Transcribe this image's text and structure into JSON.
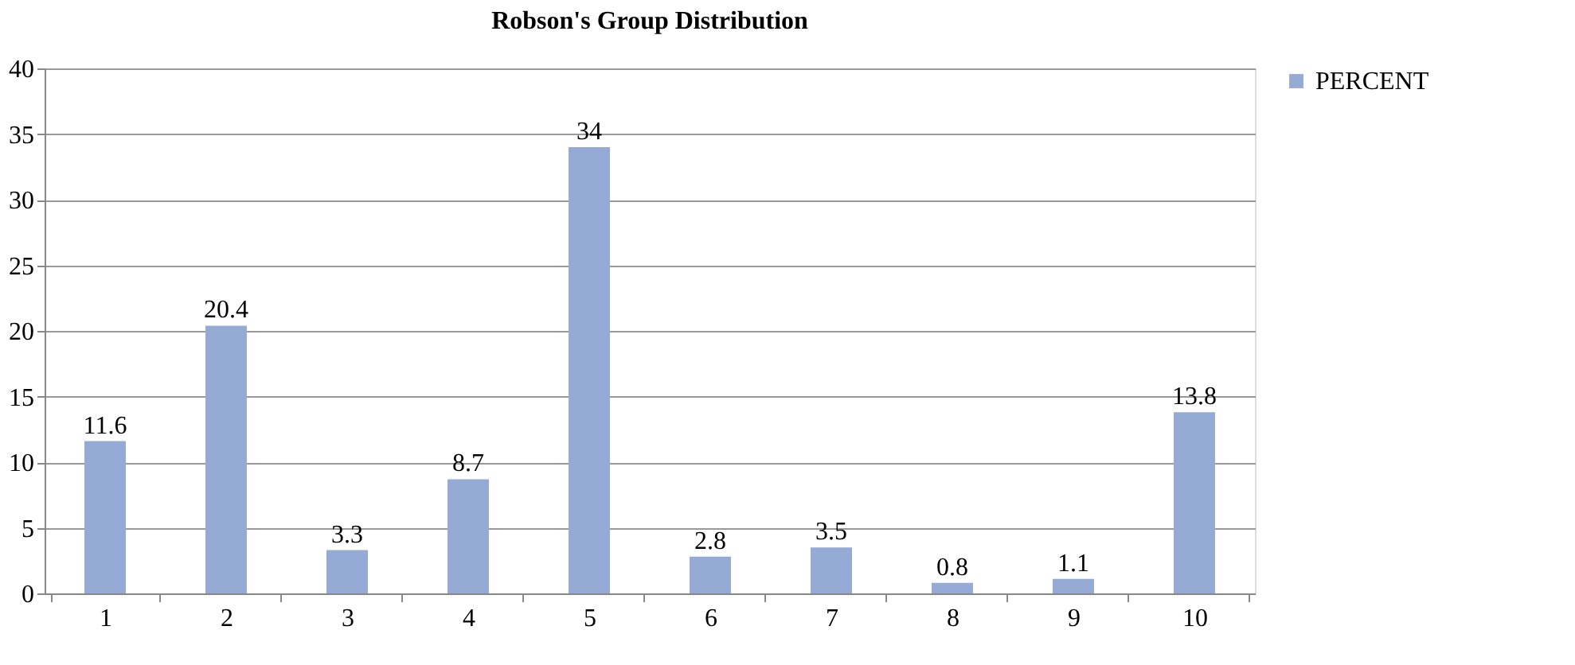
{
  "chart_data": {
    "type": "bar",
    "title": "Robson's Group Distribution",
    "categories": [
      "1",
      "2",
      "3",
      "4",
      "5",
      "6",
      "7",
      "8",
      "9",
      "10"
    ],
    "series": [
      {
        "name": "PERCENT",
        "color": "#95abd5",
        "values": [
          11.6,
          20.4,
          3.3,
          8.7,
          34,
          2.8,
          3.5,
          0.8,
          1.1,
          13.8
        ]
      }
    ],
    "ylim": [
      0,
      40
    ],
    "yticks": [
      0,
      5,
      10,
      15,
      20,
      25,
      30,
      35,
      40
    ],
    "grid": "y",
    "legend": "right",
    "data_labels": true
  }
}
